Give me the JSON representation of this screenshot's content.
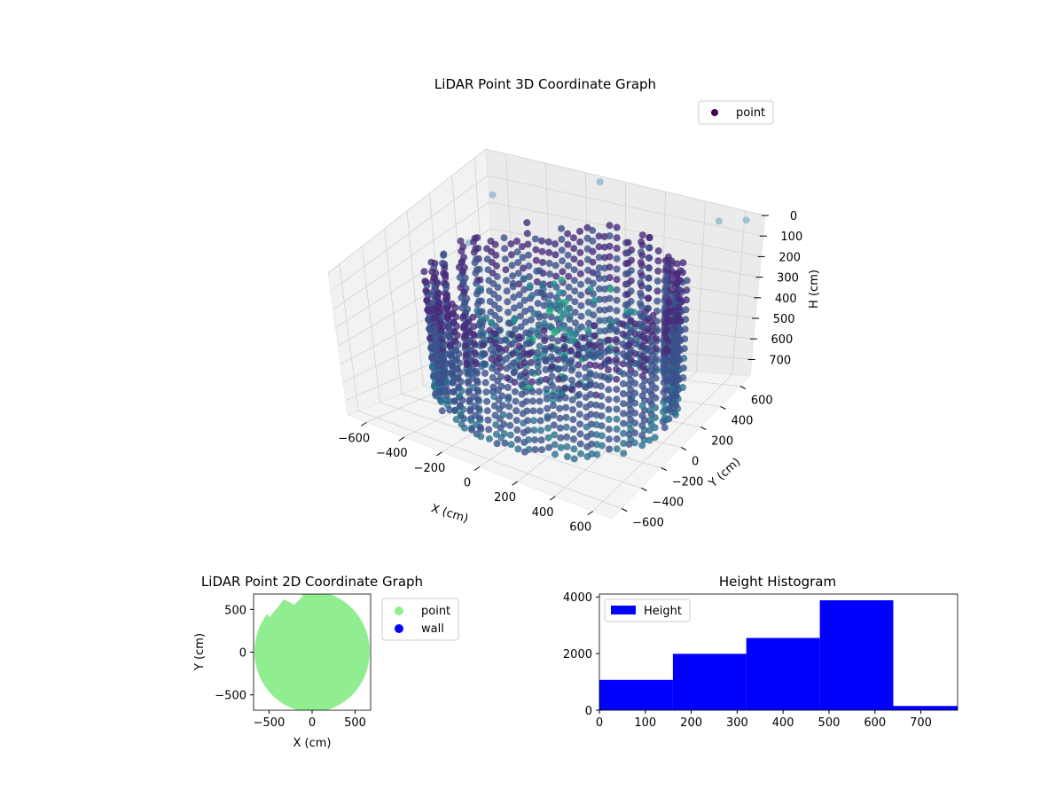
{
  "chart_data": [
    {
      "type": "scatter",
      "projection": "3d",
      "title": "LiDAR Point 3D Coordinate Graph",
      "xlabel": "X (cm)",
      "ylabel": "Y (cm)",
      "zlabel": "H (cm)",
      "xlim": [
        -700,
        700
      ],
      "ylim": [
        -700,
        700
      ],
      "zlim": [
        0,
        780
      ],
      "z_inverted": true,
      "xticks": [
        -600,
        -400,
        -200,
        0,
        200,
        400,
        600
      ],
      "yticks": [
        -600,
        -400,
        -200,
        0,
        200,
        400,
        600
      ],
      "zticks": [
        0,
        100,
        200,
        300,
        400,
        500,
        600,
        700
      ],
      "colormap": "viridis",
      "legend": {
        "placement": "top-right",
        "entries": [
          {
            "name": "point",
            "color": "#440154"
          }
        ]
      },
      "shape": "approximately circular wall ring of points, radius about 620 cm, heights about 100 to 780 cm, plus a few outlier points"
    },
    {
      "type": "scatter",
      "title": "LiDAR Point 2D Coordinate Graph",
      "xlabel": "X (cm)",
      "ylabel": "Y (cm)",
      "xlim": [
        -680,
        680
      ],
      "ylim": [
        -680,
        680
      ],
      "xticks": [
        -500,
        0,
        500
      ],
      "yticks": [
        -500,
        0,
        500
      ],
      "legend": {
        "placement": "outside-right",
        "entries": [
          {
            "name": "point",
            "color": "#90ee90"
          },
          {
            "name": "wall",
            "color": "#0000ff"
          }
        ]
      }
    },
    {
      "type": "bar",
      "subtype": "histogram",
      "title": "Height Histogram",
      "series": [
        {
          "name": "Height",
          "color": "#0000ff",
          "bins": [
            {
              "x0": 0,
              "x1": 160,
              "count": 1070
            },
            {
              "x0": 160,
              "x1": 320,
              "count": 1990
            },
            {
              "x0": 320,
              "x1": 480,
              "count": 2550
            },
            {
              "x0": 480,
              "x1": 640,
              "count": 3880
            },
            {
              "x0": 640,
              "x1": 780,
              "count": 150
            }
          ]
        }
      ],
      "xlim": [
        0,
        780
      ],
      "ylim": [
        0,
        4100
      ],
      "xticks": [
        0,
        100,
        200,
        300,
        400,
        500,
        600,
        700
      ],
      "yticks": [
        0,
        2000,
        4000
      ],
      "legend": {
        "placement": "top-left"
      }
    }
  ]
}
